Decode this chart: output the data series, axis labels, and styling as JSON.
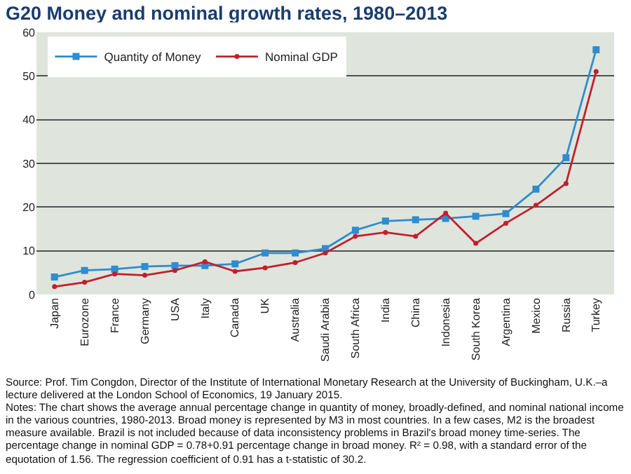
{
  "chart_data": {
    "type": "line",
    "title": "G20 Money and nominal growth rates, 1980–2013",
    "categories": [
      "Japan",
      "Eurozone",
      "France",
      "Germany",
      "USA",
      "Italy",
      "Canada",
      "UK",
      "Australia",
      "Saudi Arabia",
      "South Africa",
      "India",
      "China",
      "Indonesia",
      "South Korea",
      "Argentina",
      "Mexico",
      "Russia",
      "Turkey"
    ],
    "series": [
      {
        "name": "Quantity of Money",
        "color": "#2f8ccf",
        "marker": "square",
        "values": [
          4,
          5.5,
          5.8,
          6.4,
          6.6,
          6.6,
          7,
          9.5,
          9.5,
          10.5,
          14.7,
          16.8,
          17.1,
          17.4,
          17.9,
          18.5,
          24.1,
          31.3,
          56
        ]
      },
      {
        "name": "Nominal GDP",
        "color": "#c0202e",
        "marker": "circle",
        "values": [
          1.8,
          2.8,
          4.7,
          4.4,
          5.5,
          7.5,
          5.3,
          6.1,
          7.3,
          9.5,
          13.3,
          14.2,
          13.3,
          18.6,
          11.7,
          16.3,
          20.4,
          25.4,
          51
        ]
      }
    ],
    "ylim": [
      0,
      60
    ],
    "yticks": [
      0,
      10,
      20,
      30,
      40,
      50,
      60
    ],
    "grid": "y",
    "legend": "top left",
    "annotations": [
      "Source: Prof. Tim Congdon, Director of the Institute of International Monetary Research at the University of Buckingham, U.K.–a lecture delivered at the London School of Economics, 19 January 2015.",
      "Notes: The chart shows the average annual percentage change in quantity of money, broadly-defined, and nominal national income in the various countries, 1980-2013. Broad money is represented by M3 in most countries. In a few cases, M2 is the broadest measure available. Brazil is not included because of data inconsistency problems in Brazil's broad money time-series. The percentage change in nominal GDP = 0.78+0.91 percentage change in broad money. R² = 0.98, with a standard error of the equotation of 1.56. The regression coefficient of 0.91 has a t-statistic of 30.2."
    ]
  }
}
